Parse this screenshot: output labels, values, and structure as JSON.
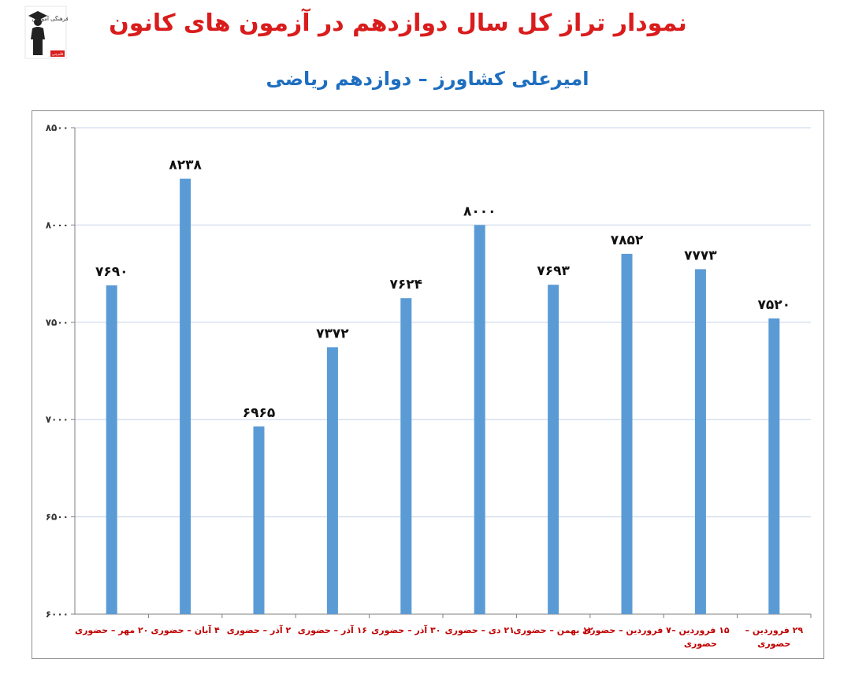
{
  "header": {
    "title": "نمودار تراز کل سال دوازدهم در آزمون های کانون",
    "subtitle": "امیرعلی کشاورز – دوازدهم ریاضی"
  },
  "logo": {
    "label": "کانون فرهنگی آموزش",
    "badge": "قلم‌چی"
  },
  "colors": {
    "title": "#d91c1c",
    "subtitle": "#1f6fc0",
    "bar": "#5b9bd5",
    "category_label": "#c00000",
    "grid": "#c5d4e8"
  },
  "chart_data": {
    "type": "bar",
    "title": "نمودار تراز کل سال دوازدهم در آزمون های کانون",
    "subtitle": "امیرعلی کشاورز – دوازدهم ریاضی",
    "xlabel": "",
    "ylabel": "",
    "ylim": [
      6000,
      8500
    ],
    "yticks": [
      6000,
      6500,
      7000,
      7500,
      8000,
      8500
    ],
    "ytick_labels": [
      "۶۰۰۰",
      "۶۵۰۰",
      "۷۰۰۰",
      "۷۵۰۰",
      "۸۰۰۰",
      "۸۵۰۰"
    ],
    "grid": true,
    "legend": "none",
    "categories": [
      "۲۰ مهر – حضوری",
      "۴ آبان – حضوری",
      "۲ آذر – حضوری",
      "۱۶ آذر – حضوری",
      "۳۰ آذر – حضوری",
      "۲۱ دی – حضوری",
      "۱۲ بهمن – حضوری",
      "۷ فروردین – حضوری",
      "۱۵ فروردین – حضوری",
      "۲۹ فروردین – حضوری"
    ],
    "category_lines": [
      [
        "۲۰ مهر – حضوری"
      ],
      [
        "۴ آبان – حضوری"
      ],
      [
        "۲ آذر – حضوری"
      ],
      [
        "۱۶ آذر – حضوری"
      ],
      [
        "۳۰ آذر – حضوری"
      ],
      [
        "۲۱ دی – حضوری"
      ],
      [
        "۱۲ بهمن – حضوری"
      ],
      [
        "۷ فروردین – حضوری"
      ],
      [
        "۱۵ فروردین –",
        "حضوری"
      ],
      [
        "۲۹ فروردین –",
        "حضوری"
      ]
    ],
    "values": [
      7690,
      8238,
      6965,
      7372,
      7624,
      8000,
      7693,
      7852,
      7773,
      7520
    ],
    "value_labels": [
      "۷۶۹۰",
      "۸۲۳۸",
      "۶۹۶۵",
      "۷۳۷۲",
      "۷۶۲۴",
      "۸۰۰۰",
      "۷۶۹۳",
      "۷۸۵۲",
      "۷۷۷۳",
      "۷۵۲۰"
    ]
  }
}
